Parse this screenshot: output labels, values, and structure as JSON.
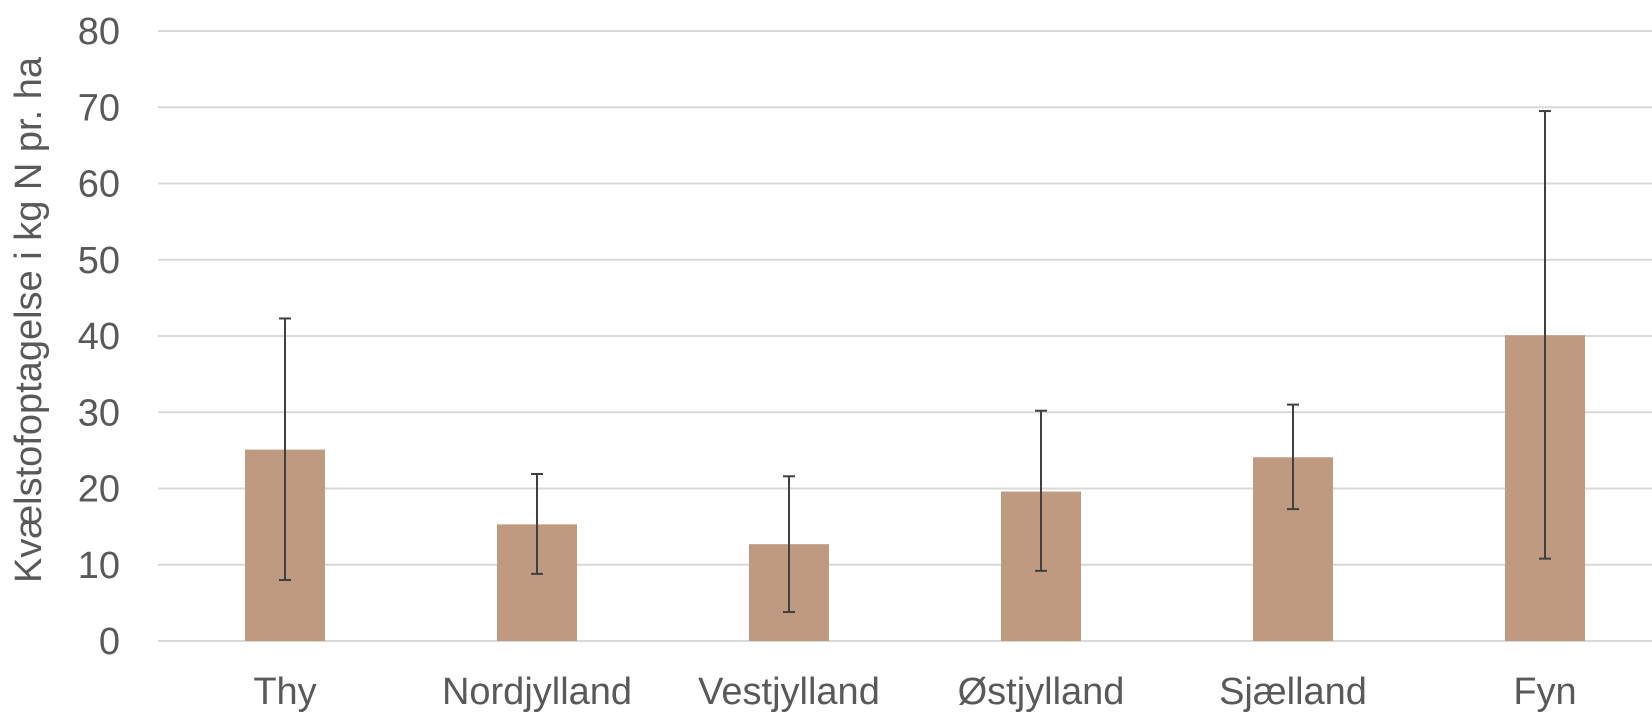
{
  "chart_data": {
    "type": "bar",
    "title": "",
    "xlabel": "",
    "ylabel": "Kvælstofoptagelse i kg N pr. ha",
    "ylim": [
      0,
      80
    ],
    "yticks": [
      0,
      10,
      20,
      30,
      40,
      50,
      60,
      70,
      80
    ],
    "grid": true,
    "legend": "none",
    "categories": [
      "Thy",
      "Nordjylland",
      "Vestjylland",
      "Østjylland",
      "Sjælland",
      "Fyn"
    ],
    "series": [
      {
        "values": [
          25.1,
          15.3,
          12.7,
          19.6,
          24.1,
          40.1
        ],
        "error_low": [
          8.0,
          8.8,
          3.8,
          9.2,
          17.3,
          10.8
        ],
        "error_high": [
          42.3,
          21.9,
          21.6,
          30.2,
          31.0,
          69.5
        ]
      }
    ],
    "colors": {
      "bar": "#BF9A80",
      "grid": "#D9D9D9",
      "error_bar": "#404040",
      "text": "#595959"
    }
  }
}
